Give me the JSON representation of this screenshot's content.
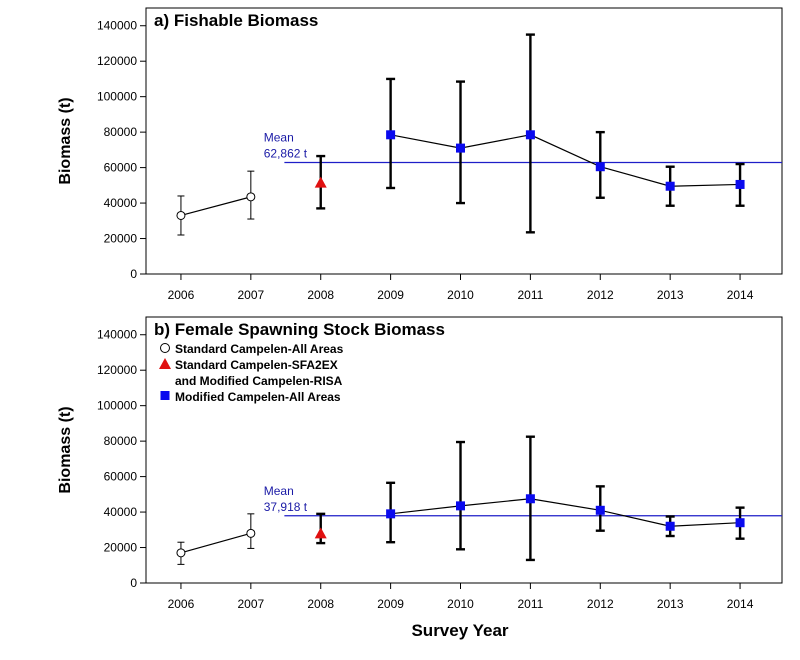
{
  "colors": {
    "mean_line": "#1e1ec8",
    "standard_marker": "#ffffff",
    "sfa2ex_marker": "#e01010",
    "modified_marker": "#0a0aee"
  },
  "x_axis_label": "Survey Year",
  "y_axis_label": "Biomass (t)",
  "legend": [
    {
      "key": "standard",
      "lines": [
        "Standard Campelen-All Areas"
      ],
      "marker": "open-circle"
    },
    {
      "key": "sfa2ex",
      "lines": [
        "Standard Campelen-SFA2EX",
        "and Modified Campelen-RISA"
      ],
      "marker": "red-triangle"
    },
    {
      "key": "modified",
      "lines": [
        "Modified Campelen-All Areas"
      ],
      "marker": "blue-square"
    }
  ],
  "chart_data": [
    {
      "type": "line",
      "title": "a) Fishable Biomass",
      "xlabel": "",
      "ylabel": "Biomass (t)",
      "categories": [
        "2006",
        "2007",
        "2008",
        "2009",
        "2010",
        "2011",
        "2012",
        "2013",
        "2014"
      ],
      "ylim": [
        0,
        150000
      ],
      "yticks": [
        0,
        20000,
        40000,
        60000,
        80000,
        100000,
        120000,
        140000
      ],
      "mean": {
        "value": 62862,
        "label_lines": [
          "Mean",
          "62,862 t"
        ]
      },
      "series": [
        {
          "name": "Standard Campelen-All Areas",
          "marker": "open-circle",
          "points": [
            {
              "year": "2006",
              "value": 33000,
              "low": 22000,
              "high": 44000
            },
            {
              "year": "2007",
              "value": 43500,
              "low": 31000,
              "high": 58000
            }
          ]
        },
        {
          "name": "Standard Campelen-SFA2EX and Modified Campelen-RISA",
          "marker": "red-triangle",
          "points": [
            {
              "year": "2008",
              "value": 51500,
              "low": 37000,
              "high": 66500
            }
          ]
        },
        {
          "name": "Modified Campelen-All Areas",
          "marker": "blue-square",
          "points": [
            {
              "year": "2009",
              "value": 78500,
              "low": 48500,
              "high": 110000
            },
            {
              "year": "2010",
              "value": 71000,
              "low": 40000,
              "high": 108500
            },
            {
              "year": "2011",
              "value": 78500,
              "low": 23500,
              "high": 135000
            },
            {
              "year": "2012",
              "value": 60500,
              "low": 43000,
              "high": 80000
            },
            {
              "year": "2013",
              "value": 49500,
              "low": 38500,
              "high": 60500
            },
            {
              "year": "2014",
              "value": 50500,
              "low": 38500,
              "high": 62000
            }
          ]
        }
      ]
    },
    {
      "type": "line",
      "title": "b) Female Spawning Stock Biomass",
      "xlabel": "Survey Year",
      "ylabel": "Biomass (t)",
      "categories": [
        "2006",
        "2007",
        "2008",
        "2009",
        "2010",
        "2011",
        "2012",
        "2013",
        "2014"
      ],
      "ylim": [
        0,
        150000
      ],
      "yticks": [
        0,
        20000,
        40000,
        60000,
        80000,
        100000,
        120000,
        140000
      ],
      "mean": {
        "value": 37918,
        "label_lines": [
          "Mean",
          "37,918 t"
        ]
      },
      "series": [
        {
          "name": "Standard Campelen-All Areas",
          "marker": "open-circle",
          "points": [
            {
              "year": "2006",
              "value": 17000,
              "low": 10500,
              "high": 23000
            },
            {
              "year": "2007",
              "value": 28000,
              "low": 19500,
              "high": 39000
            }
          ]
        },
        {
          "name": "Standard Campelen-SFA2EX and Modified Campelen-RISA",
          "marker": "red-triangle",
          "points": [
            {
              "year": "2008",
              "value": 28000,
              "low": 22500,
              "high": 39000
            }
          ]
        },
        {
          "name": "Modified Campelen-All Areas",
          "marker": "blue-square",
          "points": [
            {
              "year": "2009",
              "value": 39000,
              "low": 23000,
              "high": 56500
            },
            {
              "year": "2010",
              "value": 43500,
              "low": 19000,
              "high": 79500
            },
            {
              "year": "2011",
              "value": 47500,
              "low": 13000,
              "high": 82500
            },
            {
              "year": "2012",
              "value": 41000,
              "low": 29500,
              "high": 54500
            },
            {
              "year": "2013",
              "value": 32000,
              "low": 26500,
              "high": 37500
            },
            {
              "year": "2014",
              "value": 34000,
              "low": 25000,
              "high": 42500
            }
          ]
        }
      ]
    }
  ]
}
